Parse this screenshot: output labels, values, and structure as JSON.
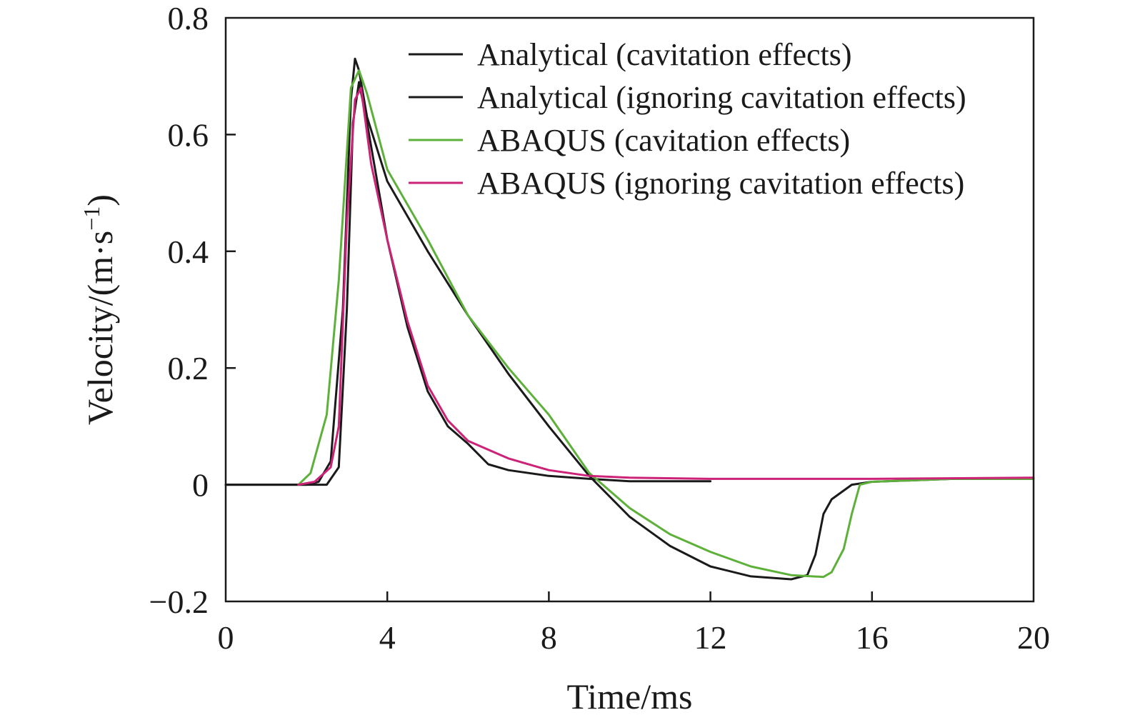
{
  "chart_data": {
    "type": "line",
    "xlabel": "Time/ms",
    "ylabel": "Velocity/(m·s",
    "ylabel_sup": "−1",
    "ylabel_close": ")",
    "xlim": [
      0,
      20
    ],
    "ylim": [
      -0.2,
      0.8
    ],
    "xticks": [
      0,
      4,
      8,
      12,
      16,
      20
    ],
    "yticks": [
      -0.2,
      0,
      0.2,
      0.4,
      0.6,
      0.8
    ],
    "xtick_labels": [
      "0",
      "4",
      "8",
      "12",
      "16",
      "20"
    ],
    "ytick_labels": [
      "−0.2",
      "0",
      "0.2",
      "0.4",
      "0.6",
      "0.8"
    ],
    "grid": false,
    "legend_position": "top-right",
    "series": [
      {
        "name": "Analytical (cavitation effects)",
        "color": "#1a1a1a",
        "points": [
          [
            0,
            0
          ],
          [
            2.0,
            0
          ],
          [
            2.3,
            0.005
          ],
          [
            2.6,
            0.04
          ],
          [
            2.9,
            0.3
          ],
          [
            3.1,
            0.66
          ],
          [
            3.2,
            0.73
          ],
          [
            3.3,
            0.71
          ],
          [
            3.5,
            0.63
          ],
          [
            4.0,
            0.52
          ],
          [
            5.0,
            0.4
          ],
          [
            6.0,
            0.29
          ],
          [
            7.0,
            0.19
          ],
          [
            8.0,
            0.1
          ],
          [
            9.0,
            0.015
          ],
          [
            10.0,
            -0.055
          ],
          [
            11.0,
            -0.105
          ],
          [
            12.0,
            -0.14
          ],
          [
            13.0,
            -0.157
          ],
          [
            14.0,
            -0.162
          ],
          [
            14.4,
            -0.155
          ],
          [
            14.6,
            -0.12
          ],
          [
            14.8,
            -0.05
          ],
          [
            15.0,
            -0.025
          ],
          [
            15.5,
            0
          ],
          [
            16.0,
            0.005
          ],
          [
            18.0,
            0.01
          ],
          [
            20.0,
            0.01
          ]
        ]
      },
      {
        "name": "Analytical (ignoring cavitation effects)",
        "color": "#1a1a1a",
        "points": [
          [
            0,
            0
          ],
          [
            2.5,
            0
          ],
          [
            2.8,
            0.03
          ],
          [
            3.0,
            0.3
          ],
          [
            3.15,
            0.62
          ],
          [
            3.3,
            0.69
          ],
          [
            3.5,
            0.62
          ],
          [
            4.0,
            0.42
          ],
          [
            4.5,
            0.27
          ],
          [
            5.0,
            0.16
          ],
          [
            5.5,
            0.1
          ],
          [
            6.0,
            0.07
          ],
          [
            6.5,
            0.035
          ],
          [
            7.0,
            0.025
          ],
          [
            8.0,
            0.015
          ],
          [
            9.0,
            0.01
          ],
          [
            10.0,
            0.006
          ],
          [
            12.0,
            0.006
          ]
        ]
      },
      {
        "name": "ABAQUS (cavitation effects)",
        "color": "#5db13a",
        "points": [
          [
            1.8,
            0
          ],
          [
            2.1,
            0.02
          ],
          [
            2.5,
            0.12
          ],
          [
            2.8,
            0.35
          ],
          [
            3.1,
            0.68
          ],
          [
            3.3,
            0.71
          ],
          [
            3.5,
            0.67
          ],
          [
            4.0,
            0.54
          ],
          [
            5.0,
            0.42
          ],
          [
            6.0,
            0.29
          ],
          [
            7.0,
            0.2
          ],
          [
            8.0,
            0.12
          ],
          [
            9.0,
            0.02
          ],
          [
            10.0,
            -0.04
          ],
          [
            11.0,
            -0.085
          ],
          [
            12.0,
            -0.115
          ],
          [
            13.0,
            -0.14
          ],
          [
            14.0,
            -0.155
          ],
          [
            14.8,
            -0.158
          ],
          [
            15.0,
            -0.15
          ],
          [
            15.3,
            -0.11
          ],
          [
            15.5,
            -0.05
          ],
          [
            15.7,
            0
          ],
          [
            16.0,
            0.005
          ],
          [
            18.0,
            0.01
          ],
          [
            20.0,
            0.01
          ]
        ]
      },
      {
        "name": "ABAQUS (ignoring cavitation effects)",
        "color": "#cc2277",
        "points": [
          [
            1.8,
            0
          ],
          [
            2.2,
            0.005
          ],
          [
            2.6,
            0.03
          ],
          [
            2.8,
            0.1
          ],
          [
            3.0,
            0.45
          ],
          [
            3.2,
            0.66
          ],
          [
            3.35,
            0.68
          ],
          [
            3.6,
            0.55
          ],
          [
            4.0,
            0.42
          ],
          [
            4.5,
            0.28
          ],
          [
            5.0,
            0.17
          ],
          [
            5.5,
            0.11
          ],
          [
            6.0,
            0.075
          ],
          [
            7.0,
            0.045
          ],
          [
            8.0,
            0.025
          ],
          [
            9.0,
            0.015
          ],
          [
            10.0,
            0.012
          ],
          [
            12.0,
            0.01
          ],
          [
            16.0,
            0.01
          ],
          [
            20.0,
            0.012
          ]
        ]
      }
    ]
  }
}
